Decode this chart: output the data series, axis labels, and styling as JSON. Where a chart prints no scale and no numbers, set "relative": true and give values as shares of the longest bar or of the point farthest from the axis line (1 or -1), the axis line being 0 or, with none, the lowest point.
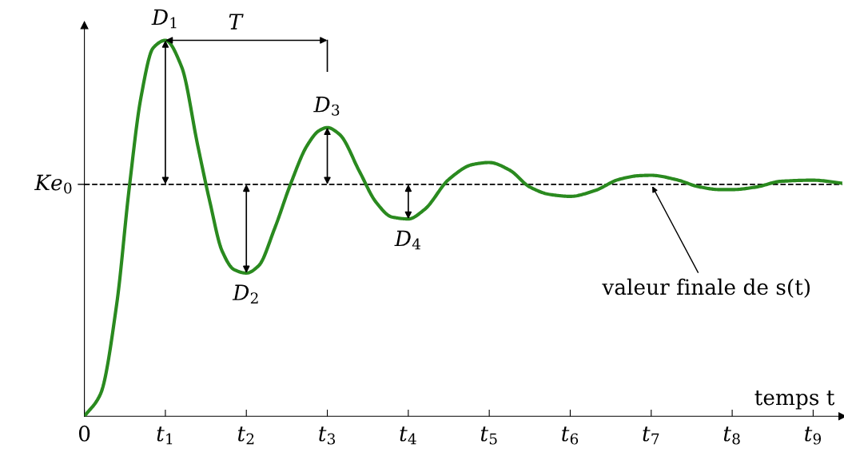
{
  "chart_data": {
    "type": "line",
    "relative": true,
    "xlabel": "temps t",
    "x": [
      0,
      0.2,
      0.4,
      0.55,
      0.7,
      0.85,
      1,
      1.2,
      1.4,
      1.55,
      1.7,
      1.85,
      2,
      2.15,
      2.35,
      2.55,
      2.75,
      2.9,
      3,
      3.15,
      3.4,
      3.6,
      3.8,
      4,
      4.2,
      4.5,
      4.8,
      5,
      5.25,
      5.5,
      5.75,
      6,
      6.3,
      6.6,
      6.85,
      7,
      7.3,
      7.6,
      7.85,
      8,
      8.3,
      8.6,
      9,
      9.36
    ],
    "series": [
      {
        "color": "#2a8a1f",
        "values": [
          0,
          0.06,
          0.3,
          0.6,
          0.85,
          0.98,
          1,
          0.93,
          0.72,
          0.57,
          0.44,
          0.39,
          0.381,
          0.4,
          0.5,
          0.62,
          0.72,
          0.76,
          0.768,
          0.75,
          0.65,
          0.57,
          0.53,
          0.525,
          0.55,
          0.63,
          0.67,
          0.675,
          0.655,
          0.61,
          0.59,
          0.585,
          0.6,
          0.63,
          0.64,
          0.641,
          0.63,
          0.61,
          0.603,
          0.603,
          0.61,
          0.625,
          0.628,
          0.62
        ]
      }
    ],
    "xlim": [
      0,
      9.36
    ],
    "xticks": [
      0,
      {
        "value": 1,
        "label": "t$_{1}$"
      },
      {
        "value": 2,
        "label": "t$_{2}$"
      },
      {
        "value": 3,
        "label": "t$_{3}$"
      },
      {
        "value": 4,
        "label": "t$_{4}$"
      },
      {
        "value": 5,
        "label": "t$_{5}$"
      },
      {
        "value": 6,
        "label": "t$_{6}$"
      },
      {
        "value": 7,
        "label": "t$_{7}$"
      },
      {
        "value": 8,
        "label": "t$_{8}$"
      },
      {
        "value": 9,
        "label": "t$_{9}$"
      }
    ],
    "ref_lines": [
      {
        "axis": "y",
        "value": 0.617,
        "label": "Ke$_{0}$",
        "color": "#000000",
        "line_style": "dashed"
      }
    ],
    "annotations": [
      {
        "text": "D$_{1}$",
        "x": 1,
        "y": 1
      },
      {
        "text": "D$_{2}$",
        "x": 2,
        "y": 0.381
      },
      {
        "text": "D$_{3}$",
        "x": 3,
        "y": 0.768
      },
      {
        "text": "D$_{4}$",
        "x": 4,
        "y": 0.525
      },
      "T",
      {
        "text": "valeur finale de s(t)",
        "x": 7,
        "y": 0.617
      }
    ],
    "grid": false,
    "marker": "none",
    "line_style": "solid"
  }
}
